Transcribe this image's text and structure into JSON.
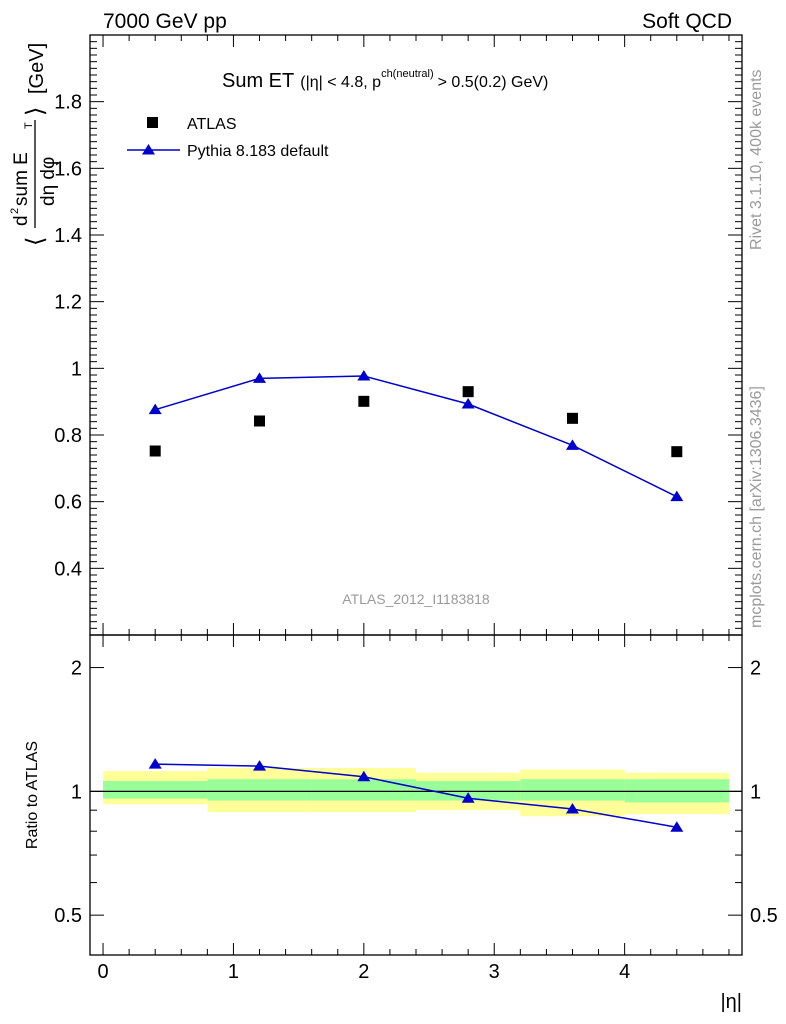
{
  "header": {
    "left": "7000 GeV pp",
    "right": "Soft QCD"
  },
  "side_labels": {
    "rivet": "Rivet 3.1.10,  400k events",
    "mcplots": "mcplots.cern.ch [arXiv:1306.3436]"
  },
  "watermark": "ATLAS_2012_I1183818",
  "colors": {
    "data": "#000000",
    "mc": "#0000cc",
    "band_inner": "#99ff99",
    "band_outer": "#ffff99"
  },
  "chart_data": [
    {
      "type": "scatter",
      "panel": "main",
      "title": "Sum ET (|η| < 4.8, p^ch(neutral) > 0.5(0.2) GeV)",
      "title_parts": {
        "main": "Sum ET",
        "open": "(|η| < 4.8, p",
        "sup": "ch(neutral)",
        "close": "> 0.5(0.2) GeV)"
      },
      "ylabel": "⟨ d²sum E_T / dη dφ ⟩ [GeV]",
      "ylabel_parts": {
        "open": "⟨",
        "d2": "d",
        "two": "2",
        "sum": "sum E",
        "T": "T",
        "den": "dη dφ",
        "close": "⟩",
        "unit": "[GeV]"
      },
      "xlim": [
        -0.1,
        4.9
      ],
      "ylim": [
        0.2,
        2.0
      ],
      "yticks": [
        0.4,
        0.6,
        0.8,
        1.0,
        1.2,
        1.4,
        1.6,
        1.8
      ],
      "ytick_labels": [
        "0.4",
        "0.6",
        "0.8",
        "1",
        "1.2",
        "1.4",
        "1.6",
        "1.8"
      ],
      "legend": {
        "position": "top-left",
        "entries": [
          "ATLAS",
          "Pythia 8.183 default"
        ]
      },
      "series": [
        {
          "name": "ATLAS",
          "style": "square-markers",
          "x": [
            0.4,
            1.2,
            2.0,
            2.8,
            3.6,
            4.4
          ],
          "y": [
            0.752,
            0.842,
            0.901,
            0.93,
            0.85,
            0.75
          ]
        },
        {
          "name": "Pythia 8.183 default",
          "style": "line-triangles",
          "x": [
            0.4,
            1.2,
            2.0,
            2.8,
            3.6,
            4.4
          ],
          "y": [
            0.876,
            0.97,
            0.977,
            0.893,
            0.769,
            0.615
          ]
        }
      ]
    },
    {
      "type": "line",
      "panel": "ratio",
      "ylabel": "Ratio to ATLAS",
      "xlabel": "|η|",
      "xlim": [
        -0.1,
        4.9
      ],
      "ylim": [
        0.4,
        2.4
      ],
      "yscale": "log",
      "xticks": [
        0,
        1,
        2,
        3,
        4
      ],
      "xtick_labels": [
        "0",
        "1",
        "2",
        "3",
        "4"
      ],
      "yticks": [
        0.5,
        1,
        2
      ],
      "ytick_labels": [
        "0.5",
        "1",
        "2"
      ],
      "bins": [
        [
          0.0,
          0.8
        ],
        [
          0.8,
          1.6
        ],
        [
          1.6,
          2.4
        ],
        [
          2.4,
          3.2
        ],
        [
          3.2,
          4.0
        ],
        [
          4.0,
          4.8
        ]
      ],
      "bands": {
        "inner": [
          [
            0.96,
            1.06
          ],
          [
            0.95,
            1.07
          ],
          [
            0.95,
            1.07
          ],
          [
            0.95,
            1.06
          ],
          [
            0.95,
            1.07
          ],
          [
            0.94,
            1.07
          ]
        ],
        "outer": [
          [
            0.93,
            1.12
          ],
          [
            0.89,
            1.14
          ],
          [
            0.89,
            1.14
          ],
          [
            0.9,
            1.11
          ],
          [
            0.87,
            1.13
          ],
          [
            0.88,
            1.11
          ]
        ]
      },
      "series": [
        {
          "name": "Pythia 8.183 default / ATLAS",
          "x": [
            0.4,
            1.2,
            2.0,
            2.8,
            3.6,
            4.4
          ],
          "y": [
            1.165,
            1.152,
            1.085,
            0.962,
            0.906,
            0.818
          ]
        }
      ]
    }
  ]
}
